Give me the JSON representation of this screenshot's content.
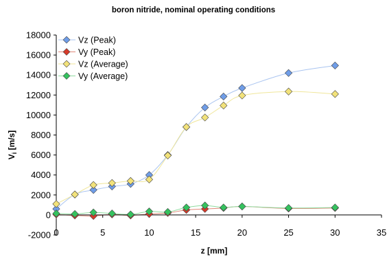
{
  "chart_data": {
    "type": "scatter",
    "title": "boron nitride, nominal operating conditions",
    "xlabel": "z [mm]",
    "ylabel": {
      "main": "V",
      "sub": "i",
      "rest": " [m/s]"
    },
    "xlim": [
      0,
      35
    ],
    "ylim": [
      -2000,
      18000
    ],
    "xticks": [
      0,
      5,
      10,
      15,
      20,
      25,
      30,
      35
    ],
    "yticks": [
      -2000,
      0,
      2000,
      4000,
      6000,
      8000,
      10000,
      12000,
      14000,
      16000,
      18000
    ],
    "grid": false,
    "legend_position": "top-left",
    "series": [
      {
        "name": "Vz (Peak)",
        "color": "#6f9de8",
        "line_color": "#a9c4f0",
        "x": [
          0,
          2,
          4,
          6,
          8,
          10,
          12,
          14,
          16,
          18,
          20,
          25,
          30
        ],
        "y": [
          600,
          2050,
          2500,
          2850,
          3100,
          4000,
          6000,
          8800,
          10750,
          11850,
          12700,
          14200,
          14950
        ]
      },
      {
        "name": "Vy (Peak)",
        "color": "#d63a2a",
        "line_color": "#e08878",
        "x": [
          0,
          2,
          4,
          6,
          8,
          10,
          12,
          14,
          16,
          18,
          20,
          25,
          30
        ],
        "y": [
          50,
          -50,
          -100,
          50,
          -50,
          100,
          200,
          500,
          600,
          700,
          850,
          650,
          700
        ]
      },
      {
        "name": "Vz (Average)",
        "color": "#f2e27a",
        "line_color": "#f0e69a",
        "x": [
          0,
          2,
          4,
          6,
          8,
          10,
          12,
          14,
          16,
          18,
          20,
          25,
          30
        ],
        "y": [
          1100,
          2050,
          3000,
          3200,
          3400,
          3550,
          5950,
          8800,
          9750,
          10950,
          11950,
          12350,
          12100
        ]
      },
      {
        "name": "Vy (Average)",
        "color": "#35c25f",
        "line_color": "#8fdc9f",
        "x": [
          0,
          2,
          4,
          6,
          8,
          10,
          12,
          14,
          16,
          18,
          20,
          25,
          30
        ],
        "y": [
          150,
          100,
          250,
          150,
          50,
          350,
          300,
          750,
          950,
          750,
          850,
          700,
          750
        ]
      }
    ]
  }
}
